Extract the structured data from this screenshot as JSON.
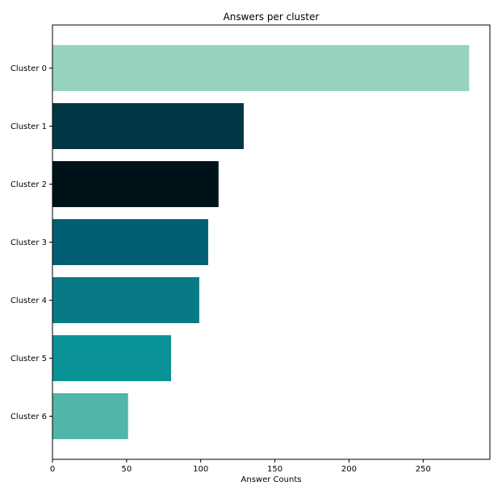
{
  "chart_data": {
    "type": "bar",
    "orientation": "horizontal",
    "title": "Answers per cluster",
    "xlabel": "Answer Counts",
    "ylabel": "",
    "categories": [
      "Cluster 0",
      "Cluster 1",
      "Cluster 2",
      "Cluster 3",
      "Cluster 4",
      "Cluster 5",
      "Cluster 6"
    ],
    "values": [
      281,
      129,
      112,
      105,
      99,
      80,
      51
    ],
    "colors": [
      "#96d2bc",
      "#023846",
      "#001219",
      "#005f73",
      "#077a85",
      "#0a9396",
      "#52b5aa"
    ],
    "xlim": [
      0,
      295
    ],
    "xticks": [
      0,
      50,
      100,
      150,
      200,
      250
    ],
    "grid": false,
    "legend": "none"
  }
}
